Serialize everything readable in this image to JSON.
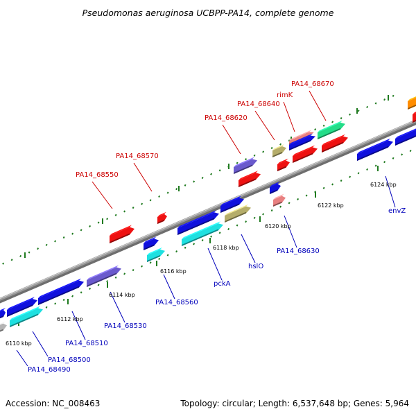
{
  "title": "Pseudomonas aeruginosa UCBPP-PA14, complete genome",
  "footer": {
    "accession": "Accession: NC_008463",
    "summary": "Topology: circular; Length: 6,537,648 bp; Genes: 5,964"
  },
  "colors": {
    "backbone": "#8c8c8c",
    "label_top": "#cc0000",
    "label_bottom": "#0000bb",
    "tick": "#1f7a1f"
  },
  "ticks": [
    {
      "label": "6110 kbp"
    },
    {
      "label": "6112 kbp"
    },
    {
      "label": "6114 kbp"
    },
    {
      "label": "6116 kbp"
    },
    {
      "label": "6118 kbp"
    },
    {
      "label": "6120 kbp"
    },
    {
      "label": "6122 kbp"
    },
    {
      "label": "6124 kbp"
    }
  ],
  "labels": {
    "top": [
      "PA14_68550",
      "PA14_68570",
      "PA14_68620",
      "PA14_68640",
      "rimK",
      "PA14_68670"
    ],
    "bottom": [
      "PA14_68490",
      "PA14_68500",
      "PA14_68510",
      "PA14_68530",
      "PA14_68560",
      "pckA",
      "hslO",
      "PA14_68630",
      "envZ"
    ]
  },
  "genes": [
    {
      "name": "gene-gray-left",
      "color": "#b4b4b4",
      "strand": "+"
    },
    {
      "name": "gene-cyan-68500",
      "color": "#1ee0e0",
      "strand": "+"
    },
    {
      "name": "gene-blue-68490",
      "color": "#1010dd",
      "strand": "+"
    },
    {
      "name": "gene-blue-68510",
      "color": "#1010dd",
      "strand": "+"
    },
    {
      "name": "gene-blue-68520",
      "color": "#1010dd",
      "strand": "+"
    },
    {
      "name": "gene-purple-68530",
      "color": "#6a5acd",
      "strand": "+"
    },
    {
      "name": "gene-red-68550",
      "color": "#ee1111",
      "strand": "+"
    },
    {
      "name": "gene-red-68570",
      "color": "#ee1111",
      "strand": "+"
    },
    {
      "name": "gene-blue-small-a",
      "color": "#1010dd",
      "strand": "+"
    },
    {
      "name": "gene-cyan-68560",
      "color": "#1ee0e0",
      "strand": "+"
    },
    {
      "name": "gene-blue-68580",
      "color": "#1010dd",
      "strand": "+"
    },
    {
      "name": "gene-cyan-pckA",
      "color": "#1ee0e0",
      "strand": "+"
    },
    {
      "name": "gene-blue-68600",
      "color": "#1010dd",
      "strand": "+"
    },
    {
      "name": "gene-khaki-hslO",
      "color": "#b5ad6a",
      "strand": "+"
    },
    {
      "name": "gene-purple-68620",
      "color": "#6a5acd",
      "strand": "+"
    },
    {
      "name": "gene-red-68625",
      "color": "#ee1111",
      "strand": "+"
    },
    {
      "name": "gene-blue-small-b",
      "color": "#1010dd",
      "strand": "+"
    },
    {
      "name": "gene-pink-68630",
      "color": "#e88080",
      "strand": "+"
    },
    {
      "name": "gene-khaki-68640",
      "color": "#b5ad6a",
      "strand": "+"
    },
    {
      "name": "gene-red-small-68645",
      "color": "#ee1111",
      "strand": "+"
    },
    {
      "name": "gene-pink-rimK",
      "color": "#e88080",
      "strand": "+"
    },
    {
      "name": "gene-blue-rimK",
      "color": "#1010dd",
      "strand": "+"
    },
    {
      "name": "gene-red-68650",
      "color": "#ee1111",
      "strand": "+"
    },
    {
      "name": "gene-green-68670",
      "color": "#22dd88",
      "strand": "+"
    },
    {
      "name": "gene-red-68680",
      "color": "#ee1111",
      "strand": "+"
    },
    {
      "name": "gene-blue-envZ",
      "color": "#1010dd",
      "strand": "+"
    },
    {
      "name": "gene-blue-68700",
      "color": "#1010dd",
      "strand": "+"
    },
    {
      "name": "gene-orange-right",
      "color": "#ff8c00",
      "strand": "+"
    },
    {
      "name": "gene-red-right",
      "color": "#ee1111",
      "strand": "+"
    }
  ]
}
